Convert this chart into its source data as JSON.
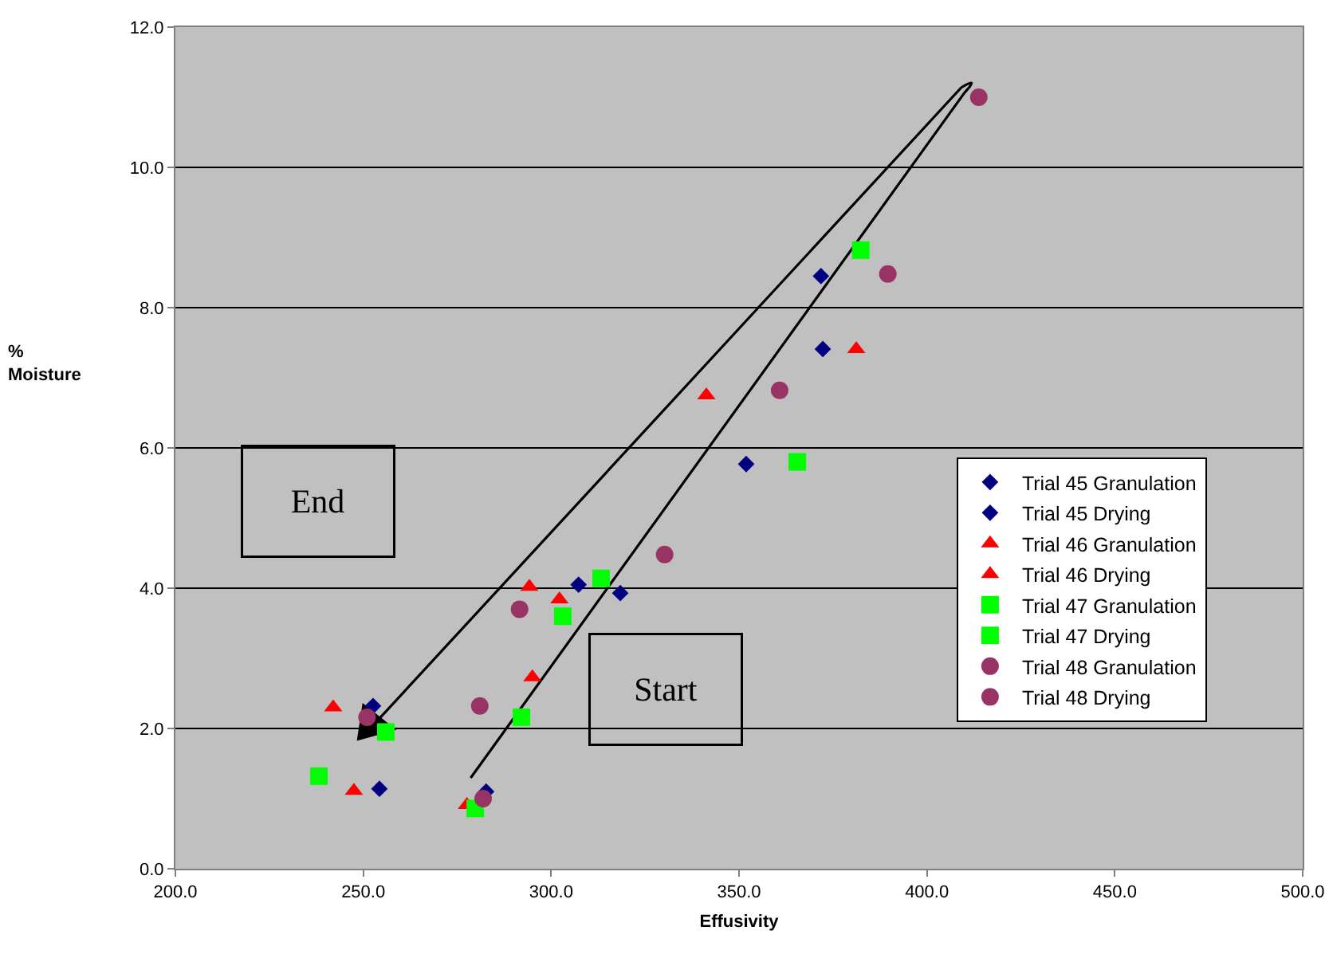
{
  "chart_data": {
    "type": "scatter",
    "xlabel": "Effusivity",
    "ylabel": "%\nMoisture",
    "xlim": [
      200,
      500
    ],
    "xticks": [
      {
        "value": 200,
        "label": "200.0"
      },
      {
        "value": 250,
        "label": "250.0"
      },
      {
        "value": 300,
        "label": "300.0"
      },
      {
        "value": 350,
        "label": "350.0"
      },
      {
        "value": 400,
        "label": "400.0"
      },
      {
        "value": 450,
        "label": "450.0"
      },
      {
        "value": 500,
        "label": "500.0"
      }
    ],
    "ylim": [
      0,
      12
    ],
    "yticks": [
      {
        "value": 0,
        "label": "0.0"
      },
      {
        "value": 2,
        "label": "2.0"
      },
      {
        "value": 4,
        "label": "4.0"
      },
      {
        "value": 6,
        "label": "6.0"
      },
      {
        "value": 8,
        "label": "8.0"
      },
      {
        "value": 10,
        "label": "10.0"
      },
      {
        "value": 12,
        "label": "12.0"
      }
    ],
    "grid": "y",
    "legend": "right",
    "annotations": [
      "End",
      "Start"
    ],
    "series": [
      {
        "name": "Trial 45 Granulation",
        "color": "#000080",
        "marker": "diamond",
        "x": [
          282.7,
          318.4,
          351.9,
          371.8
        ],
        "values": [
          1.1,
          3.93,
          5.77,
          8.45
        ]
      },
      {
        "name": "Trial 45 Drying",
        "color": "#000080",
        "marker": "diamond",
        "x": [
          254.3,
          252.6,
          307.3,
          372.3
        ],
        "values": [
          1.14,
          2.32,
          4.05,
          7.41
        ]
      },
      {
        "name": "Trial 46 Granulation",
        "color": "#ff0000",
        "marker": "triangle",
        "x": [
          277.6,
          295.0,
          302.2,
          341.3,
          381.2
        ],
        "values": [
          0.91,
          2.73,
          3.84,
          6.75,
          7.41
        ]
      },
      {
        "name": "Trial 46 Drying",
        "color": "#ff0000",
        "marker": "triangle",
        "x": [
          247.5,
          242.0,
          294.2
        ],
        "values": [
          1.11,
          2.3,
          4.02
        ]
      },
      {
        "name": "Trial 47 Granulation",
        "color": "#00ff00",
        "marker": "square",
        "x": [
          279.8,
          292.1,
          313.3,
          365.5,
          382.4
        ],
        "values": [
          0.86,
          2.16,
          4.14,
          5.8,
          8.82
        ]
      },
      {
        "name": "Trial 47 Drying",
        "color": "#00ff00",
        "marker": "square",
        "x": [
          238.2,
          256.0,
          303.1
        ],
        "values": [
          1.32,
          1.95,
          3.6
        ]
      },
      {
        "name": "Trial 48 Granulation",
        "color": "#993366",
        "marker": "circle",
        "x": [
          281.9,
          281.0,
          330.2,
          389.6,
          413.8
        ],
        "values": [
          1.0,
          2.32,
          4.48,
          8.48,
          11.0
        ]
      },
      {
        "name": "Trial 48 Drying",
        "color": "#993366",
        "marker": "circle",
        "x": [
          251.0,
          291.6,
          360.8
        ],
        "values": [
          2.16,
          3.7,
          6.82
        ]
      }
    ]
  }
}
